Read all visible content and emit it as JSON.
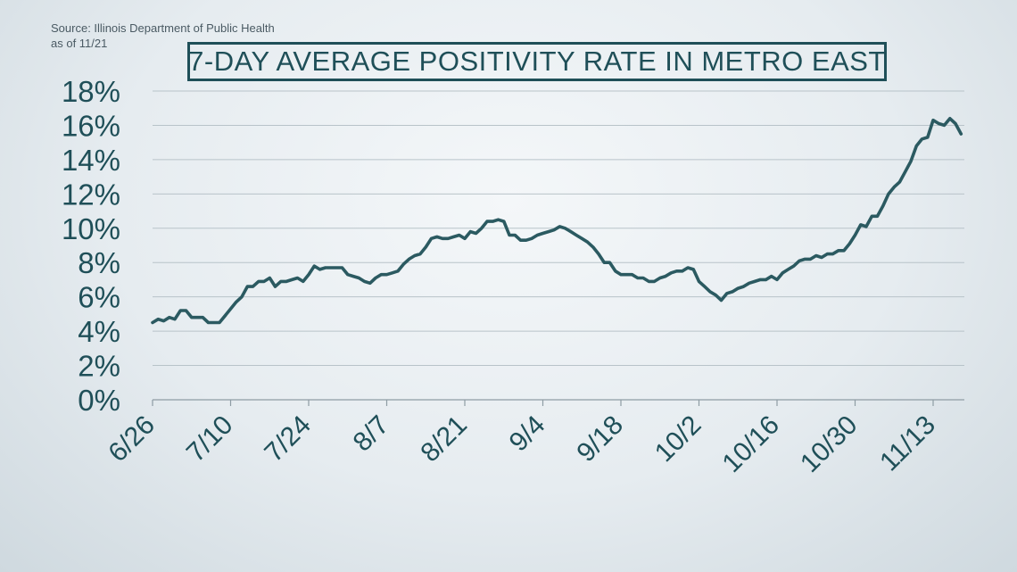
{
  "source": {
    "line1": "Source: Illinois Department of Public Health",
    "line2": "as of 11/21"
  },
  "colors": {
    "line": "#2b5a61",
    "text": "#1f4f58",
    "grid": "#b8c3c9"
  },
  "chart_data": {
    "type": "line",
    "title": "7-DAY AVERAGE POSITIVITY RATE IN METRO EAST",
    "xlabel": "",
    "ylabel": "",
    "ylim": [
      0,
      18
    ],
    "yticks": [
      0,
      2,
      4,
      6,
      8,
      10,
      12,
      14,
      16,
      18
    ],
    "ytick_labels": [
      "0%",
      "2%",
      "4%",
      "6%",
      "8%",
      "10%",
      "12%",
      "14%",
      "16%",
      "18%"
    ],
    "x_tick_labels": [
      "6/26",
      "7/10",
      "7/24",
      "8/7",
      "8/21",
      "9/4",
      "9/18",
      "10/2",
      "10/16",
      "10/30",
      "11/13"
    ],
    "x_start": "6/26",
    "x_end": "11/20",
    "grid": true,
    "series": [
      {
        "values": [
          4.5,
          4.7,
          4.6,
          4.8,
          4.7,
          5.2,
          5.2,
          4.8,
          4.8,
          4.8,
          4.5,
          4.5,
          4.5,
          4.9,
          5.3,
          5.7,
          6.0,
          6.6,
          6.6,
          6.9,
          6.9,
          7.1,
          6.6,
          6.9,
          6.9,
          7.0,
          7.1,
          6.9,
          7.3,
          7.8,
          7.6,
          7.7,
          7.7,
          7.7,
          7.7,
          7.3,
          7.2,
          7.1,
          6.9,
          6.8,
          7.1,
          7.3,
          7.3,
          7.4,
          7.5,
          7.9,
          8.2,
          8.4,
          8.5,
          8.9,
          9.4,
          9.5,
          9.4,
          9.4,
          9.5,
          9.6,
          9.4,
          9.8,
          9.7,
          10.0,
          10.4,
          10.4,
          10.5,
          10.4,
          9.6,
          9.6,
          9.3,
          9.3,
          9.4,
          9.6,
          9.7,
          9.8,
          9.9,
          10.1,
          10.0,
          9.8,
          9.6,
          9.4,
          9.2,
          8.9,
          8.5,
          8.0,
          8.0,
          7.5,
          7.3,
          7.3,
          7.3,
          7.1,
          7.1,
          6.9,
          6.9,
          7.1,
          7.2,
          7.4,
          7.5,
          7.5,
          7.7,
          7.6,
          6.9,
          6.6,
          6.3,
          6.1,
          5.8,
          6.2,
          6.3,
          6.5,
          6.6,
          6.8,
          6.9,
          7.0,
          7.0,
          7.2,
          7.0,
          7.4,
          7.6,
          7.8,
          8.1,
          8.2,
          8.2,
          8.4,
          8.3,
          8.5,
          8.5,
          8.7,
          8.7,
          9.1,
          9.6,
          10.2,
          10.1,
          10.7,
          10.7,
          11.3,
          12.0,
          12.4,
          12.7,
          13.3,
          13.9,
          14.8,
          15.2,
          15.3,
          16.3,
          16.1,
          16.0,
          16.4,
          16.1,
          15.5
        ]
      }
    ]
  }
}
